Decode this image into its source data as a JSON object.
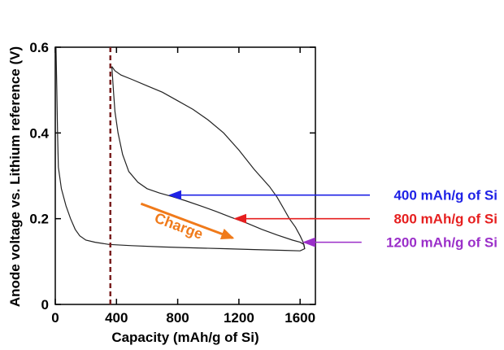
{
  "chart_data": {
    "type": "line",
    "xlabel": "Capacity (mAh/g of Si)",
    "ylabel": "Anode voltage vs. Lithium reference (V)",
    "xlim": [
      0,
      1700
    ],
    "ylim": [
      0,
      0.6
    ],
    "xticks": [
      "0",
      "400",
      "800",
      "1200",
      "1600"
    ],
    "xtick_values": [
      0,
      400,
      800,
      1200,
      1600
    ],
    "yticks": [
      "0",
      "0.2",
      "0.4",
      "0.6"
    ],
    "ytick_values": [
      0,
      0.2,
      0.4,
      0.6
    ],
    "grid": false,
    "series": [
      {
        "points": [
          [
            5,
            0.6
          ],
          [
            10,
            0.5
          ],
          [
            15,
            0.4
          ],
          [
            20,
            0.32
          ],
          [
            40,
            0.27
          ],
          [
            70,
            0.23
          ],
          [
            100,
            0.2
          ],
          [
            130,
            0.175
          ],
          [
            160,
            0.16
          ],
          [
            200,
            0.15
          ],
          [
            260,
            0.145
          ],
          [
            350,
            0.14
          ],
          [
            500,
            0.137
          ],
          [
            700,
            0.134
          ],
          [
            900,
            0.132
          ],
          [
            1100,
            0.13
          ],
          [
            1300,
            0.128
          ],
          [
            1500,
            0.126
          ],
          [
            1600,
            0.125
          ],
          [
            1630,
            0.13
          ],
          [
            1620,
            0.145
          ],
          [
            1600,
            0.16
          ],
          [
            1570,
            0.18
          ],
          [
            1530,
            0.2
          ],
          [
            1490,
            0.225
          ],
          [
            1450,
            0.25
          ],
          [
            1400,
            0.275
          ],
          [
            1300,
            0.315
          ],
          [
            1200,
            0.36
          ],
          [
            1100,
            0.4
          ],
          [
            1000,
            0.43
          ],
          [
            900,
            0.455
          ],
          [
            800,
            0.475
          ],
          [
            700,
            0.495
          ],
          [
            600,
            0.51
          ],
          [
            500,
            0.525
          ],
          [
            430,
            0.535
          ],
          [
            390,
            0.545
          ],
          [
            370,
            0.555
          ]
        ]
      },
      {
        "points": [
          [
            370,
            0.555
          ],
          [
            380,
            0.5
          ],
          [
            390,
            0.45
          ],
          [
            410,
            0.4
          ],
          [
            440,
            0.35
          ],
          [
            480,
            0.31
          ],
          [
            540,
            0.285
          ],
          [
            600,
            0.27
          ],
          [
            680,
            0.26
          ],
          [
            760,
            0.252
          ],
          [
            850,
            0.242
          ],
          [
            950,
            0.23
          ],
          [
            1050,
            0.217
          ],
          [
            1150,
            0.203
          ],
          [
            1250,
            0.19
          ],
          [
            1350,
            0.175
          ],
          [
            1450,
            0.162
          ],
          [
            1550,
            0.15
          ],
          [
            1600,
            0.145
          ],
          [
            1625,
            0.14
          ],
          [
            1630,
            0.13
          ]
        ]
      }
    ],
    "reference_line": {
      "x": 360,
      "color": "#7a1f1f",
      "style": "dashed"
    },
    "annotations": [
      {
        "text": "400 mAh/g of Si",
        "color": "#1f22e6",
        "point": [
          750,
          0.255
        ]
      },
      {
        "text": "800 mAh/g of Si",
        "color": "#e61f1f",
        "point": [
          1175,
          0.2
        ]
      },
      {
        "text": "1200 mAh/g of Si",
        "color": "#9b2fc9",
        "point": [
          1625,
          0.145
        ]
      },
      {
        "text": "Charge",
        "color": "#f07a1a",
        "arrow_from": [
          560,
          0.235
        ],
        "arrow_to": [
          1160,
          0.155
        ]
      }
    ]
  }
}
